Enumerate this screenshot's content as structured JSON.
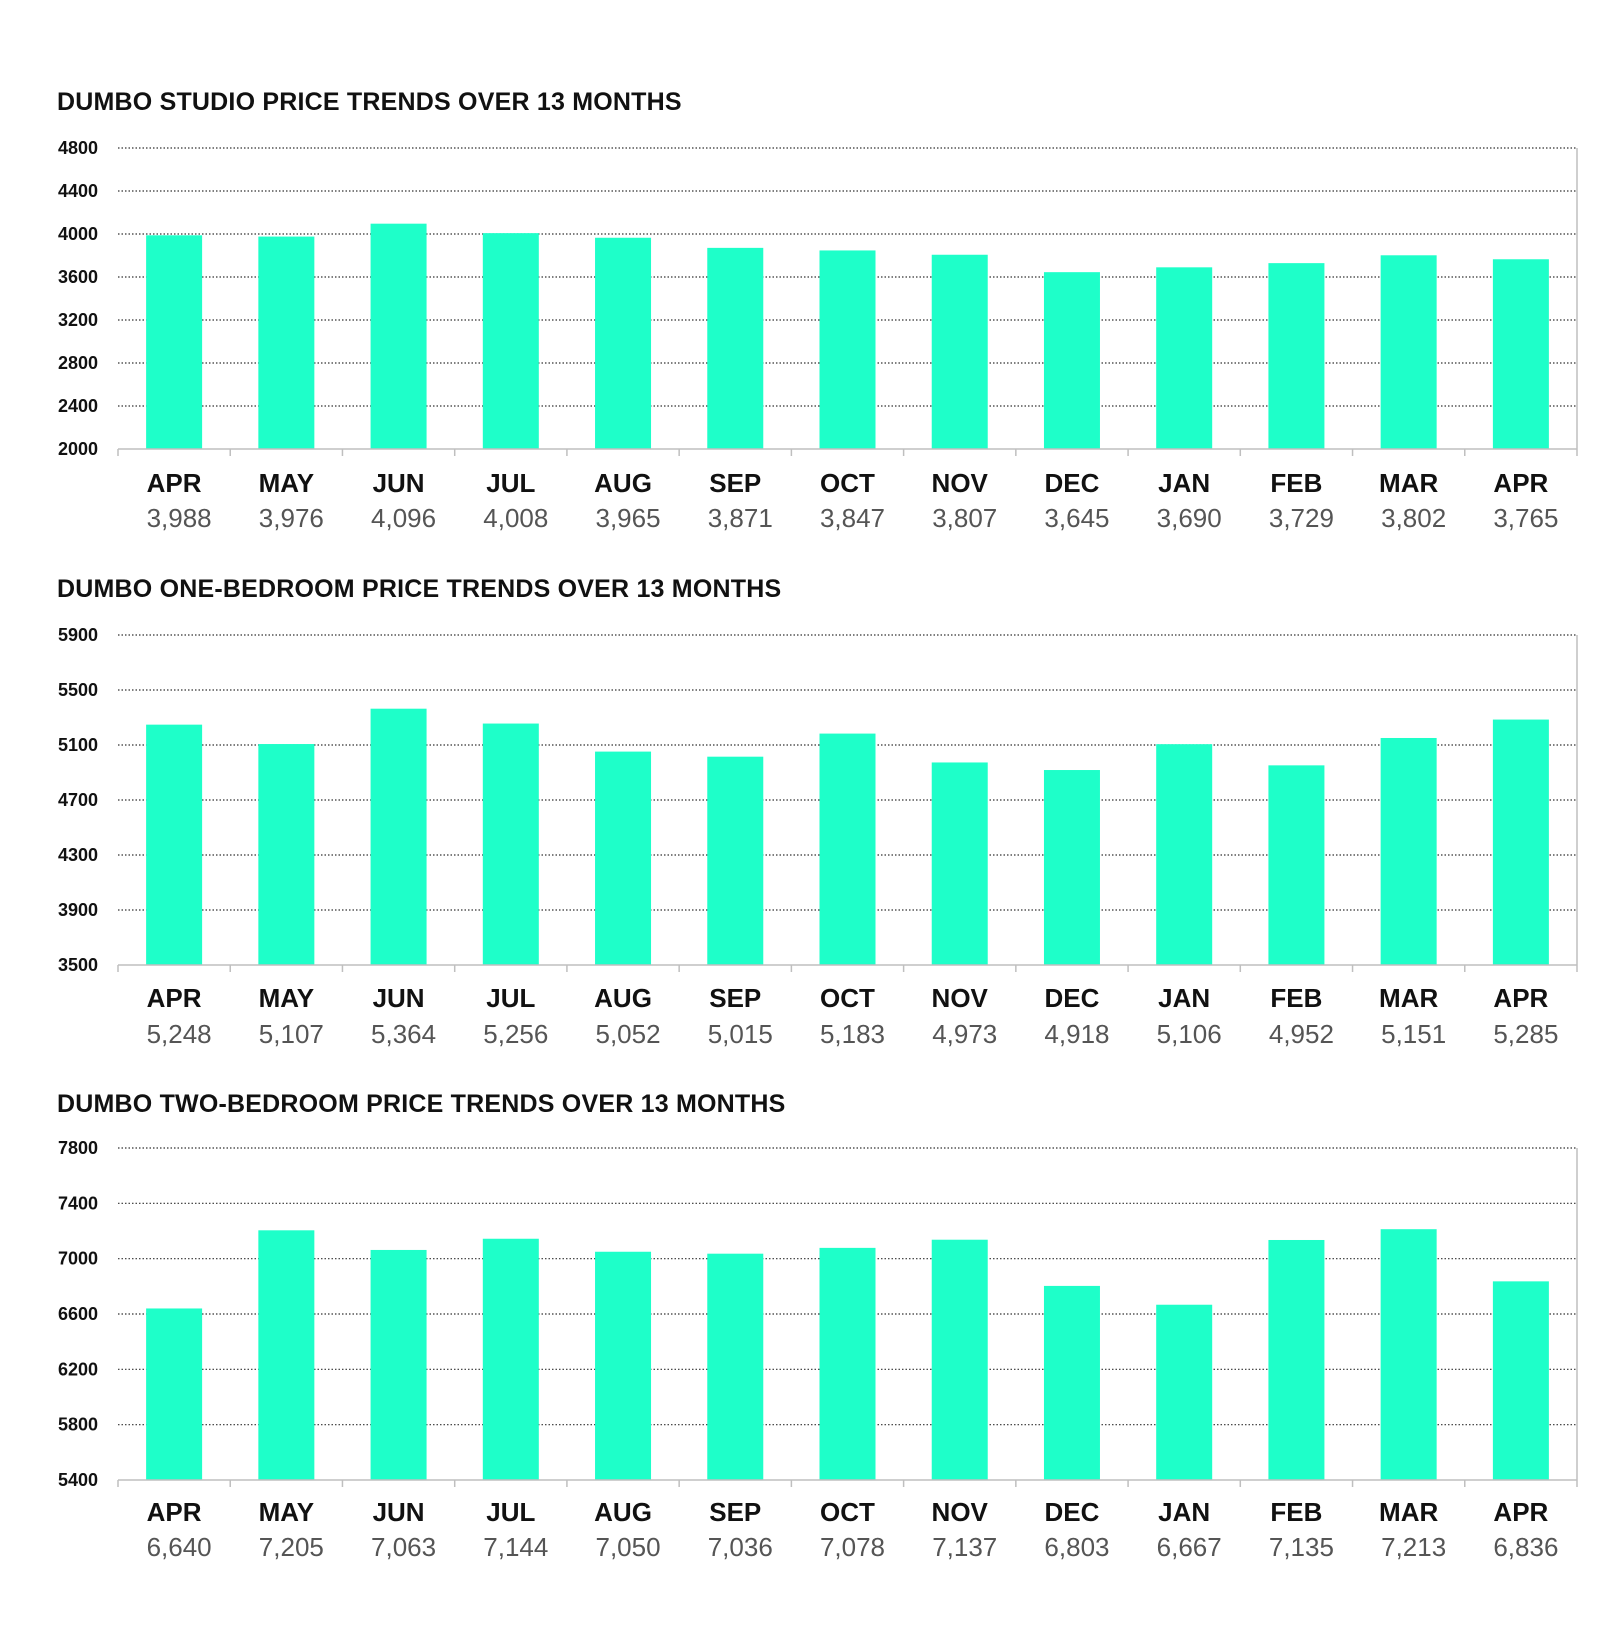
{
  "colors": {
    "bar": "#1effc9",
    "grid": "#333333",
    "axis": "#bfbfbf",
    "value_text": "#555555"
  },
  "chart_data": [
    {
      "type": "bar",
      "title": "DUMBO STUDIO PRICE TRENDS OVER 13 MONTHS",
      "categories": [
        "APR",
        "MAY",
        "JUN",
        "JUL",
        "AUG",
        "SEP",
        "OCT",
        "NOV",
        "DEC",
        "JAN",
        "FEB",
        "MAR",
        "APR"
      ],
      "value_labels": [
        "3,988",
        "3,976",
        "4,096",
        "4,008",
        "3,965",
        "3,871",
        "3,847",
        "3,807",
        "3,645",
        "3,690",
        "3,729",
        "3,802",
        "3,765"
      ],
      "values": [
        3988,
        3976,
        4096,
        4008,
        3965,
        3871,
        3847,
        3807,
        3645,
        3690,
        3729,
        3802,
        3765
      ],
      "ylim": [
        2000,
        4800
      ],
      "yticks": [
        "2000",
        "2400",
        "2800",
        "3200",
        "3600",
        "4000",
        "4400",
        "4800"
      ],
      "xlabel": "",
      "ylabel": "",
      "grid": true
    },
    {
      "type": "bar",
      "title": "DUMBO ONE-BEDROOM PRICE TRENDS OVER 13 MONTHS",
      "categories": [
        "APR",
        "MAY",
        "JUN",
        "JUL",
        "AUG",
        "SEP",
        "OCT",
        "NOV",
        "DEC",
        "JAN",
        "FEB",
        "MAR",
        "APR"
      ],
      "value_labels": [
        "5,248",
        "5,107",
        "5,364",
        "5,256",
        "5,052",
        "5,015",
        "5,183",
        "4,973",
        "4,918",
        "5,106",
        "4,952",
        "5,151",
        "5,285"
      ],
      "values": [
        5248,
        5107,
        5364,
        5256,
        5052,
        5015,
        5183,
        4973,
        4918,
        5106,
        4952,
        5151,
        5285
      ],
      "ylim": [
        3500,
        5900
      ],
      "yticks": [
        "3500",
        "3900",
        "4300",
        "4700",
        "5100",
        "5500",
        "5900"
      ],
      "xlabel": "",
      "ylabel": "",
      "grid": true
    },
    {
      "type": "bar",
      "title": "DUMBO TWO-BEDROOM PRICE TRENDS OVER 13 MONTHS",
      "categories": [
        "APR",
        "MAY",
        "JUN",
        "JUL",
        "AUG",
        "SEP",
        "OCT",
        "NOV",
        "DEC",
        "JAN",
        "FEB",
        "MAR",
        "APR"
      ],
      "value_labels": [
        "6,640",
        "7,205",
        "7,063",
        "7,144",
        "7,050",
        "7,036",
        "7,078",
        "7,137",
        "6,803",
        "6,667",
        "7,135",
        "7,213",
        "6,836"
      ],
      "values": [
        6640,
        7205,
        7063,
        7144,
        7050,
        7036,
        7078,
        7137,
        6803,
        6667,
        7135,
        7213,
        6836
      ],
      "ylim": [
        5400,
        7800
      ],
      "yticks": [
        "5400",
        "5800",
        "6200",
        "6600",
        "7000",
        "7400",
        "7800"
      ],
      "xlabel": "",
      "ylabel": "",
      "grid": true
    }
  ]
}
